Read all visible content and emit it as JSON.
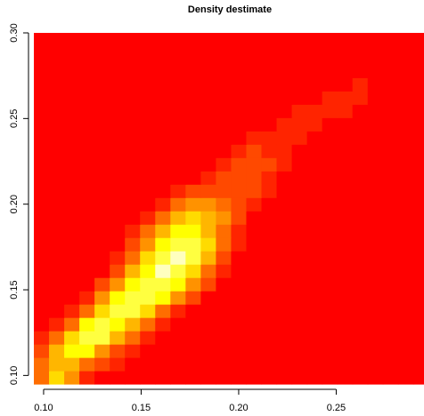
{
  "chart_data": {
    "type": "heatmap",
    "title": "Density destimate",
    "xlabel": "",
    "ylabel": "",
    "xlim": [
      0.095,
      0.295
    ],
    "ylim": [
      0.095,
      0.3
    ],
    "x_ticks": [
      "0.10",
      "0.15",
      "0.20",
      "0.25"
    ],
    "x_tick_values": [
      0.1,
      0.15,
      0.2,
      0.25
    ],
    "y_ticks": [
      "0.10",
      "0.15",
      "0.20",
      "0.25",
      "0.30"
    ],
    "y_tick_values": [
      0.1,
      0.15,
      0.2,
      0.25,
      0.3
    ],
    "grid": false,
    "x_edges": [
      0.095,
      0.10278,
      0.11056,
      0.11833,
      0.12611,
      0.13389,
      0.14167,
      0.14944,
      0.15722,
      0.165,
      0.17278,
      0.18056,
      0.18833,
      0.19611,
      0.20389,
      0.21167,
      0.21944,
      0.22722,
      0.235,
      0.24278,
      0.25056,
      0.25833,
      0.26611,
      0.27389,
      0.28167,
      0.28944,
      0.295
    ],
    "y_edges": [
      0.095,
      0.10278,
      0.11056,
      0.11833,
      0.12611,
      0.13389,
      0.14167,
      0.14944,
      0.15722,
      0.165,
      0.17278,
      0.18056,
      0.18833,
      0.19611,
      0.20389,
      0.21167,
      0.21944,
      0.22722,
      0.235,
      0.24278,
      0.25056,
      0.25833,
      0.26611,
      0.27389,
      0.28167,
      0.28944,
      0.3
    ],
    "palette": [
      "#ff0000",
      "#ff2400",
      "#ff4900",
      "#ff6d00",
      "#ff9200",
      "#ffb600",
      "#ffdb00",
      "#ffff00",
      "#ffff40",
      "#ffffbf"
    ],
    "values": [
      [
        3,
        6,
        4,
        1,
        0,
        0,
        0,
        0,
        0,
        0,
        0,
        0,
        0,
        0,
        0,
        0,
        0,
        0,
        0,
        0,
        0,
        0,
        0,
        0,
        0,
        0
      ],
      [
        3,
        5,
        5,
        3,
        2,
        1,
        0,
        0,
        0,
        0,
        0,
        0,
        0,
        0,
        0,
        0,
        0,
        0,
        0,
        0,
        0,
        0,
        0,
        0,
        0,
        0
      ],
      [
        2,
        5,
        7,
        7,
        4,
        2,
        1,
        0,
        0,
        0,
        0,
        0,
        0,
        0,
        0,
        0,
        0,
        0,
        0,
        0,
        0,
        0,
        0,
        0,
        0,
        0
      ],
      [
        1,
        3,
        6,
        8,
        8,
        5,
        3,
        1,
        0,
        0,
        0,
        0,
        0,
        0,
        0,
        0,
        0,
        0,
        0,
        0,
        0,
        0,
        0,
        0,
        0,
        0
      ],
      [
        0,
        1,
        3,
        7,
        8,
        7,
        5,
        3,
        1,
        0,
        0,
        0,
        0,
        0,
        0,
        0,
        0,
        0,
        0,
        0,
        0,
        0,
        0,
        0,
        0,
        0
      ],
      [
        0,
        0,
        1,
        3,
        6,
        8,
        8,
        6,
        3,
        1,
        0,
        0,
        0,
        0,
        0,
        0,
        0,
        0,
        0,
        0,
        0,
        0,
        0,
        0,
        0,
        0
      ],
      [
        0,
        0,
        0,
        1,
        4,
        7,
        8,
        8,
        7,
        4,
        2,
        0,
        0,
        0,
        0,
        0,
        0,
        0,
        0,
        0,
        0,
        0,
        0,
        0,
        0,
        0
      ],
      [
        0,
        0,
        0,
        0,
        2,
        4,
        7,
        8,
        8,
        7,
        4,
        2,
        0,
        0,
        0,
        0,
        0,
        0,
        0,
        0,
        0,
        0,
        0,
        0,
        0,
        0
      ],
      [
        0,
        0,
        0,
        0,
        0,
        2,
        5,
        7,
        9,
        8,
        6,
        3,
        1,
        0,
        0,
        0,
        0,
        0,
        0,
        0,
        0,
        0,
        0,
        0,
        0,
        0
      ],
      [
        0,
        0,
        0,
        0,
        0,
        1,
        3,
        6,
        8,
        9,
        8,
        5,
        2,
        0,
        0,
        0,
        0,
        0,
        0,
        0,
        0,
        0,
        0,
        0,
        0,
        0
      ],
      [
        0,
        0,
        0,
        0,
        0,
        0,
        2,
        4,
        7,
        8,
        8,
        6,
        3,
        1,
        0,
        0,
        0,
        0,
        0,
        0,
        0,
        0,
        0,
        0,
        0,
        0
      ],
      [
        0,
        0,
        0,
        0,
        0,
        0,
        1,
        3,
        5,
        7,
        7,
        5,
        3,
        1,
        0,
        0,
        0,
        0,
        0,
        0,
        0,
        0,
        0,
        0,
        0,
        0
      ],
      [
        0,
        0,
        0,
        0,
        0,
        0,
        0,
        1,
        3,
        5,
        6,
        5,
        4,
        2,
        0,
        0,
        0,
        0,
        0,
        0,
        0,
        0,
        0,
        0,
        0,
        0
      ],
      [
        0,
        0,
        0,
        0,
        0,
        0,
        0,
        0,
        1,
        3,
        4,
        4,
        3,
        2,
        1,
        0,
        0,
        0,
        0,
        0,
        0,
        0,
        0,
        0,
        0,
        0
      ],
      [
        0,
        0,
        0,
        0,
        0,
        0,
        0,
        0,
        0,
        1,
        2,
        2,
        2,
        2,
        2,
        1,
        0,
        0,
        0,
        0,
        0,
        0,
        0,
        0,
        0,
        0
      ],
      [
        0,
        0,
        0,
        0,
        0,
        0,
        0,
        0,
        0,
        0,
        0,
        1,
        2,
        2,
        2,
        1,
        0,
        0,
        0,
        0,
        0,
        0,
        0,
        0,
        0,
        0
      ],
      [
        0,
        0,
        0,
        0,
        0,
        0,
        0,
        0,
        0,
        0,
        0,
        0,
        1,
        2,
        2,
        2,
        1,
        0,
        0,
        0,
        0,
        0,
        0,
        0,
        0,
        0
      ],
      [
        0,
        0,
        0,
        0,
        0,
        0,
        0,
        0,
        0,
        0,
        0,
        0,
        0,
        1,
        2,
        1,
        1,
        0,
        0,
        0,
        0,
        0,
        0,
        0,
        0,
        0
      ],
      [
        0,
        0,
        0,
        0,
        0,
        0,
        0,
        0,
        0,
        0,
        0,
        0,
        0,
        0,
        1,
        1,
        1,
        1,
        0,
        0,
        0,
        0,
        0,
        0,
        0,
        0
      ],
      [
        0,
        0,
        0,
        0,
        0,
        0,
        0,
        0,
        0,
        0,
        0,
        0,
        0,
        0,
        0,
        0,
        1,
        1,
        1,
        0,
        0,
        0,
        0,
        0,
        0,
        0
      ],
      [
        0,
        0,
        0,
        0,
        0,
        0,
        0,
        0,
        0,
        0,
        0,
        0,
        0,
        0,
        0,
        0,
        0,
        1,
        1,
        1,
        1,
        0,
        0,
        0,
        0,
        0
      ],
      [
        0,
        0,
        0,
        0,
        0,
        0,
        0,
        0,
        0,
        0,
        0,
        0,
        0,
        0,
        0,
        0,
        0,
        0,
        0,
        1,
        1,
        1,
        0,
        0,
        0,
        0
      ],
      [
        0,
        0,
        0,
        0,
        0,
        0,
        0,
        0,
        0,
        0,
        0,
        0,
        0,
        0,
        0,
        0,
        0,
        0,
        0,
        0,
        0,
        1,
        0,
        0,
        0,
        0
      ],
      [
        0,
        0,
        0,
        0,
        0,
        0,
        0,
        0,
        0,
        0,
        0,
        0,
        0,
        0,
        0,
        0,
        0,
        0,
        0,
        0,
        0,
        0,
        0,
        0,
        0,
        0
      ],
      [
        0,
        0,
        0,
        0,
        0,
        0,
        0,
        0,
        0,
        0,
        0,
        0,
        0,
        0,
        0,
        0,
        0,
        0,
        0,
        0,
        0,
        0,
        0,
        0,
        0,
        0
      ],
      [
        0,
        0,
        0,
        0,
        0,
        0,
        0,
        0,
        0,
        0,
        0,
        0,
        0,
        0,
        0,
        0,
        0,
        0,
        0,
        0,
        0,
        0,
        0,
        0,
        0,
        0
      ]
    ]
  }
}
